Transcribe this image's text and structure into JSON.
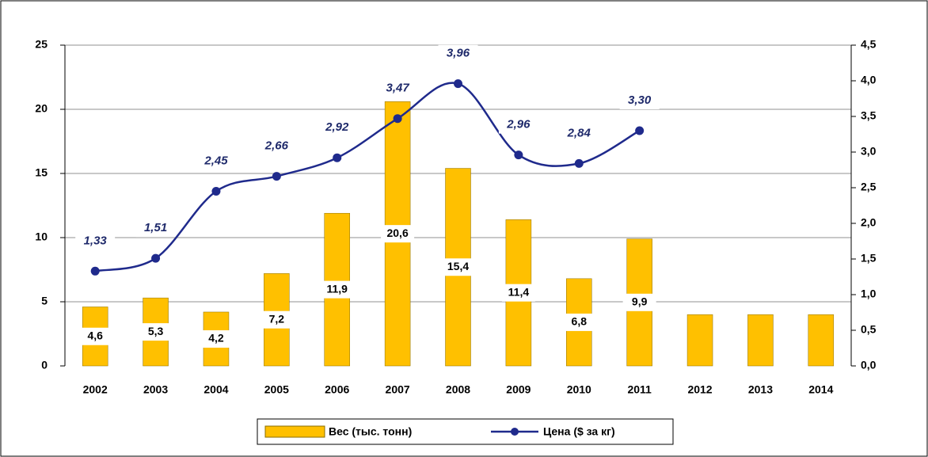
{
  "chart_data": {
    "type": "bar-line",
    "categories": [
      "2002",
      "2003",
      "2004",
      "2005",
      "2006",
      "2007",
      "2008",
      "2009",
      "2010",
      "2011",
      "2012",
      "2013",
      "2014"
    ],
    "series": [
      {
        "name": "Вес (тыс. тонн)",
        "type": "bar",
        "color": "#ffc000",
        "values": [
          4.6,
          5.3,
          4.2,
          7.2,
          11.9,
          20.6,
          15.4,
          11.4,
          6.8,
          9.9,
          4,
          4,
          4
        ],
        "value_labels": [
          "4,6",
          "5,3",
          "4,2",
          "7,2",
          "11,9",
          "20,6",
          "15,4",
          "11,4",
          "6,8",
          "9,9",
          null,
          null,
          null
        ]
      },
      {
        "name": "Цена ($ за кг)",
        "type": "line",
        "axis": "y2",
        "color": "#1f2a8c",
        "values": [
          1.33,
          1.51,
          2.45,
          2.66,
          2.92,
          3.47,
          3.96,
          2.96,
          2.84,
          3.3,
          null,
          null,
          null
        ],
        "value_labels": [
          "1,33",
          "1,51",
          "2,45",
          "2,66",
          "2,92",
          "3,47",
          "3,96",
          "2,96",
          "2,84",
          "3,30",
          null,
          null,
          null
        ]
      }
    ],
    "ylim": [
      0,
      25
    ],
    "yticks": [
      0,
      5,
      10,
      15,
      20,
      25
    ],
    "y2lim": [
      0,
      4.5
    ],
    "y2ticks": [
      {
        "value": 0,
        "label": "0,0"
      },
      {
        "value": 0.5,
        "label": "0,5"
      },
      {
        "value": 1,
        "label": "1,0"
      },
      {
        "value": 1.5,
        "label": "1,5"
      },
      {
        "value": 2,
        "label": "2,0"
      },
      {
        "value": 2.5,
        "label": "2,5"
      },
      {
        "value": 3,
        "label": "3,0"
      },
      {
        "value": 3.5,
        "label": "3,5"
      },
      {
        "value": 4,
        "label": "4,0"
      },
      {
        "value": 4.5,
        "label": "4,5"
      }
    ],
    "grid": true
  }
}
